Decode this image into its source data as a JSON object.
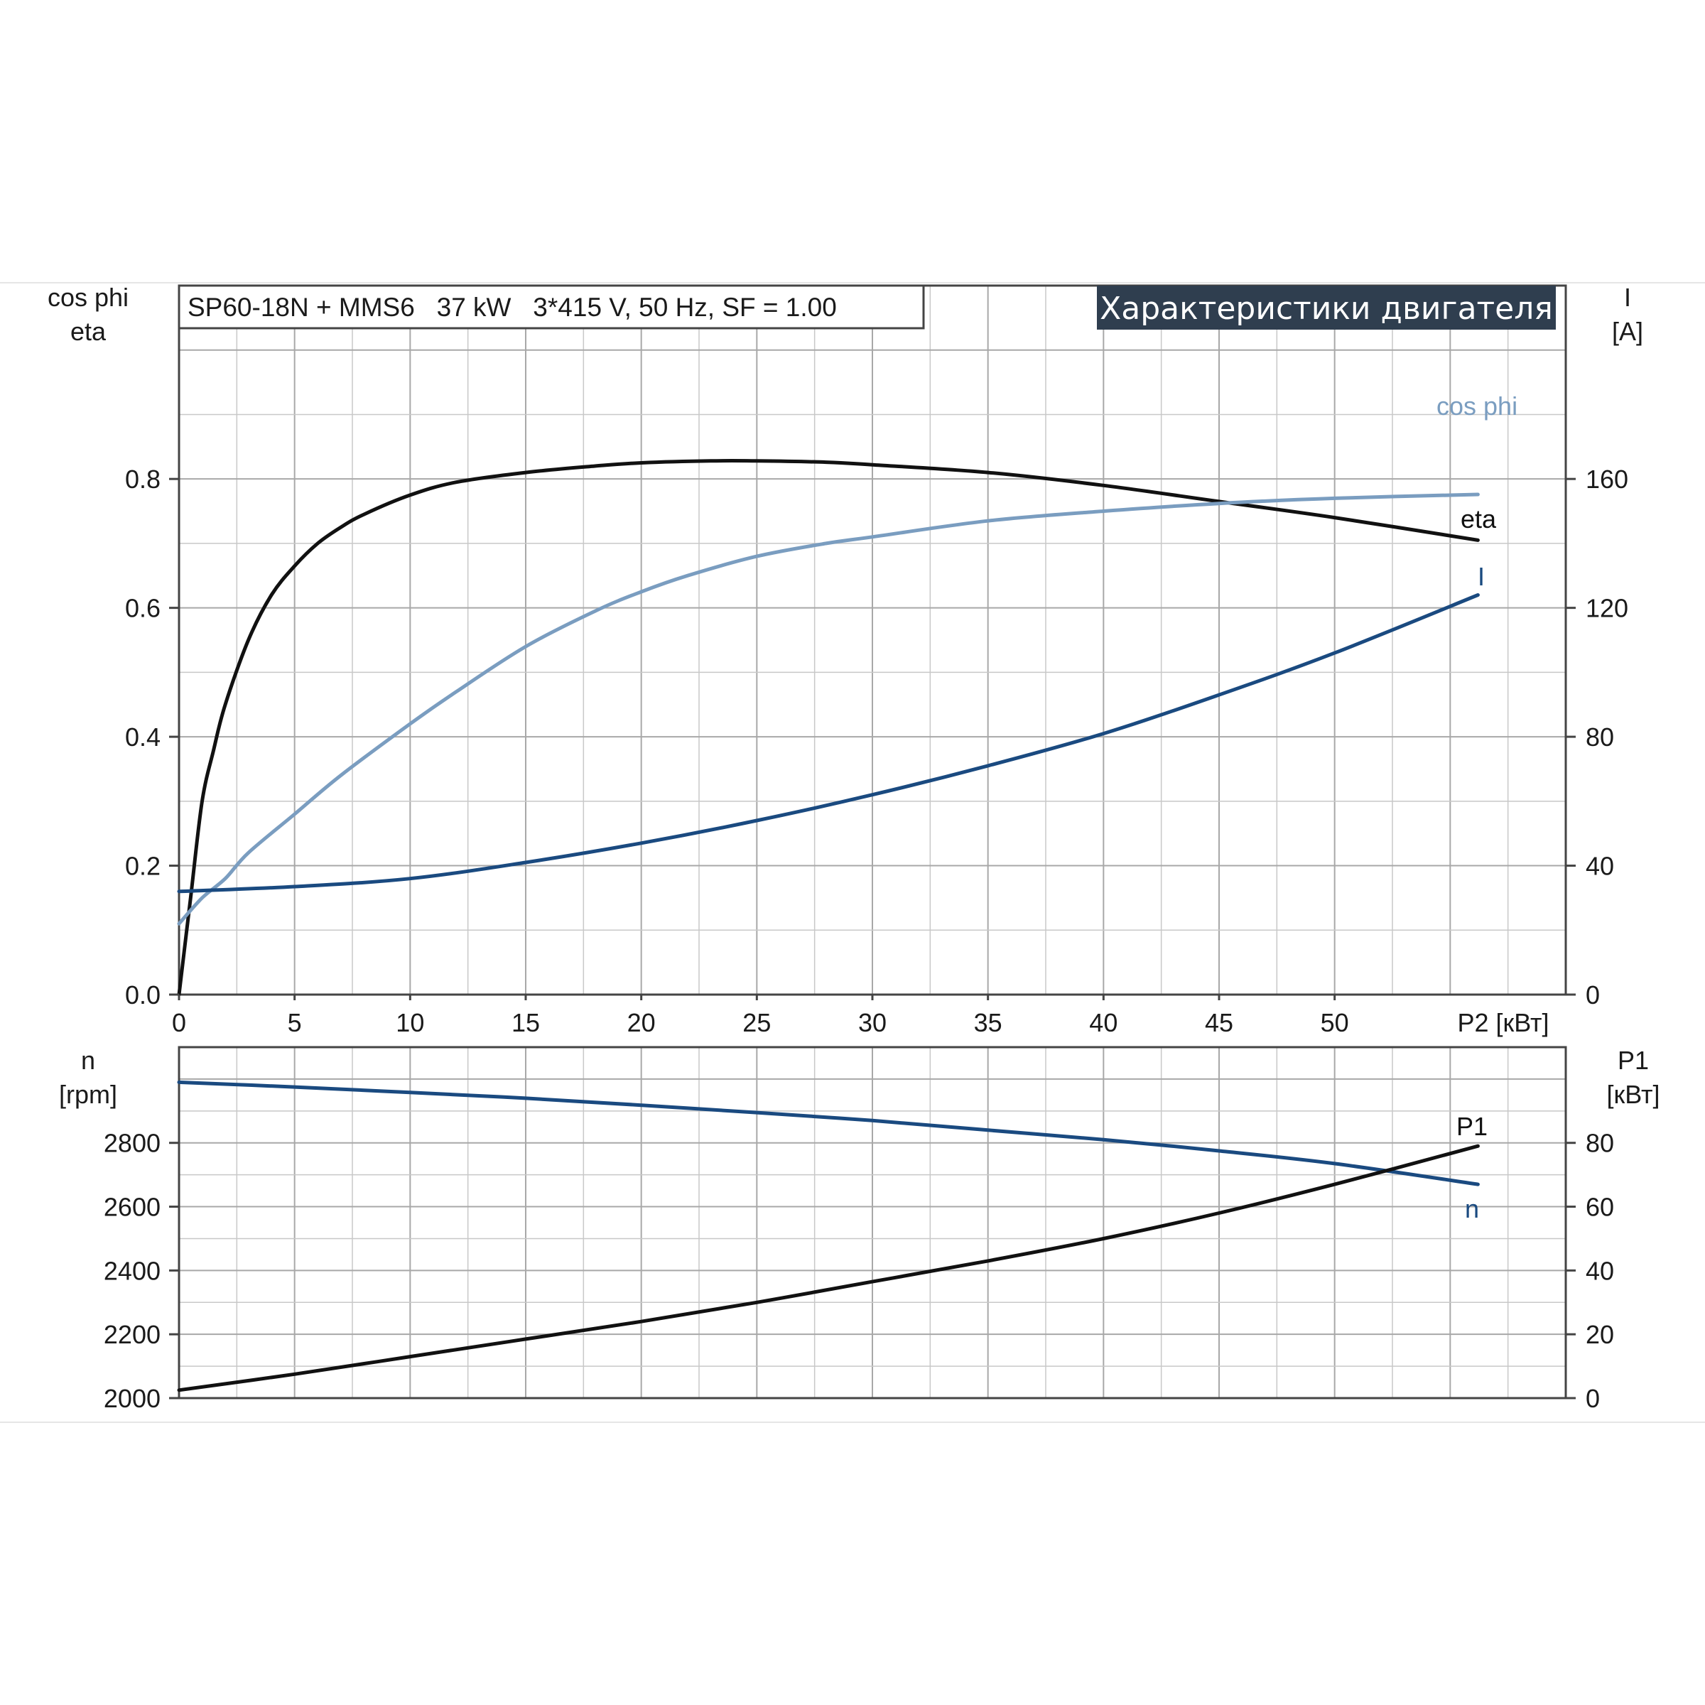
{
  "info_box": "SP60-18N + MMS6   37 kW   3*415 V, 50 Hz, SF = 1.00",
  "banner": "Характеристики двигателя",
  "chart_data": [
    {
      "type": "line",
      "x_label": "P2 [кВт]",
      "x_range": [
        0,
        60
      ],
      "x_ticks": [
        "0",
        "5",
        "10",
        "15",
        "20",
        "25",
        "30",
        "35",
        "40",
        "45",
        "50"
      ],
      "left_axis_label_1": "cos phi",
      "left_axis_label_2": "eta",
      "left_range": [
        0,
        1.1
      ],
      "left_ticks": [
        "0.0",
        "0.2",
        "0.4",
        "0.6",
        "0.8"
      ],
      "left_tick_values": [
        0,
        0.2,
        0.4,
        0.6,
        0.8
      ],
      "right_axis_label_1": "I",
      "right_axis_label_2": "[A]",
      "right_range": [
        0,
        220
      ],
      "right_ticks": [
        "0",
        "40",
        "80",
        "120",
        "160"
      ],
      "right_tick_values": [
        0,
        40,
        80,
        120,
        160
      ],
      "grid": true,
      "series": [
        {
          "name": "eta",
          "axis": "left",
          "color": "#111111",
          "x": [
            0,
            0.5,
            1,
            1.5,
            2,
            3,
            4,
            5,
            6,
            7,
            8,
            10,
            12,
            15,
            18,
            20,
            23,
            25,
            28,
            30,
            35,
            40,
            45,
            50,
            56.2
          ],
          "y": [
            0,
            0.15,
            0.3,
            0.38,
            0.45,
            0.55,
            0.62,
            0.665,
            0.7,
            0.725,
            0.745,
            0.775,
            0.795,
            0.81,
            0.82,
            0.825,
            0.828,
            0.828,
            0.826,
            0.822,
            0.81,
            0.79,
            0.765,
            0.74,
            0.705
          ]
        },
        {
          "name": "cos phi",
          "axis": "left",
          "color": "#7a9dc0",
          "x": [
            0,
            1,
            2,
            3,
            5,
            7,
            10,
            12,
            15,
            18,
            20,
            22,
            25,
            28,
            30,
            35,
            40,
            45,
            50,
            56.2
          ],
          "y": [
            0.11,
            0.15,
            0.18,
            0.22,
            0.28,
            0.34,
            0.42,
            0.47,
            0.54,
            0.595,
            0.625,
            0.65,
            0.68,
            0.7,
            0.71,
            0.735,
            0.75,
            0.762,
            0.77,
            0.776
          ]
        },
        {
          "name": "I",
          "axis": "right",
          "color": "#1a4a80",
          "x": [
            0,
            5,
            10,
            15,
            20,
            25,
            30,
            35,
            40,
            45,
            50,
            56.2
          ],
          "y": [
            32,
            33.5,
            36,
            41,
            47,
            54,
            62,
            71,
            81,
            93,
            106,
            124
          ]
        }
      ]
    },
    {
      "type": "line",
      "x_range": [
        0,
        60
      ],
      "left_axis_label_1": "n",
      "left_axis_label_2": "[rpm]",
      "left_range": [
        2000,
        3100
      ],
      "left_ticks": [
        "2000",
        "2200",
        "2400",
        "2600",
        "2800"
      ],
      "left_tick_values": [
        2000,
        2200,
        2400,
        2600,
        2800
      ],
      "right_axis_label_1": "P1",
      "right_axis_label_2": "[кВт]",
      "right_range": [
        0,
        110
      ],
      "right_ticks": [
        "0",
        "20",
        "40",
        "60",
        "80"
      ],
      "right_tick_values": [
        0,
        20,
        40,
        60,
        80
      ],
      "grid": true,
      "series": [
        {
          "name": "n",
          "axis": "left",
          "color": "#1a4a80",
          "x": [
            0,
            5,
            10,
            15,
            20,
            25,
            30,
            35,
            40,
            45,
            50,
            56.2
          ],
          "y": [
            2990,
            2975,
            2958,
            2940,
            2918,
            2895,
            2870,
            2840,
            2810,
            2775,
            2735,
            2670
          ]
        },
        {
          "name": "P1",
          "axis": "right",
          "color": "#111111",
          "x": [
            0,
            5,
            10,
            15,
            20,
            25,
            30,
            35,
            40,
            45,
            50,
            56.2
          ],
          "y": [
            2.5,
            7.5,
            13,
            18.5,
            24,
            30,
            36.5,
            43,
            50,
            58,
            67,
            79
          ]
        }
      ]
    }
  ]
}
